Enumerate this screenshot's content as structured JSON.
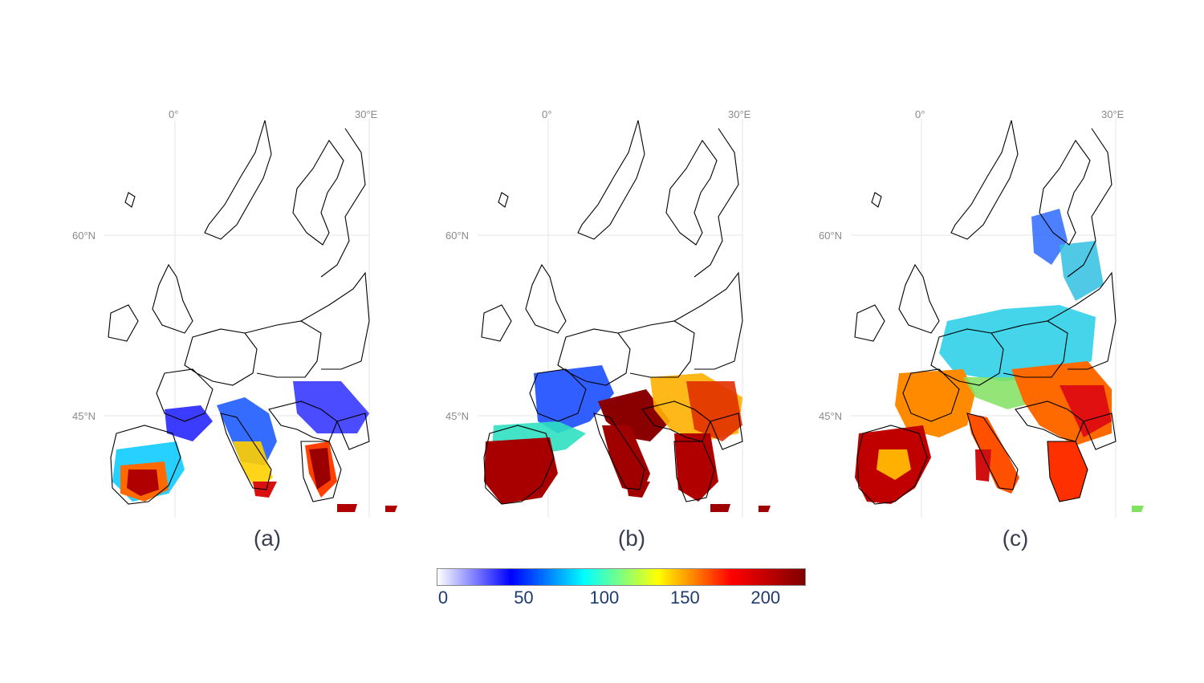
{
  "panels": [
    {
      "id": "a",
      "label": "(a)"
    },
    {
      "id": "b",
      "label": "(b)"
    },
    {
      "id": "c",
      "label": "(c)"
    }
  ],
  "graticule": {
    "lon_labels": [
      "0°",
      "30°E"
    ],
    "lat_labels": [
      "60°N",
      "45°N"
    ]
  },
  "colorbar": {
    "min": 0,
    "max": 225,
    "ticks": [
      0,
      50,
      100,
      150,
      200
    ],
    "tick_labels": [
      "0",
      "50",
      "100",
      "150",
      "200"
    ],
    "colormap": "jet",
    "colors": [
      "#ffffff",
      "#0000ff",
      "#00ffff",
      "#ffff00",
      "#ff0000",
      "#7f0000"
    ]
  }
}
